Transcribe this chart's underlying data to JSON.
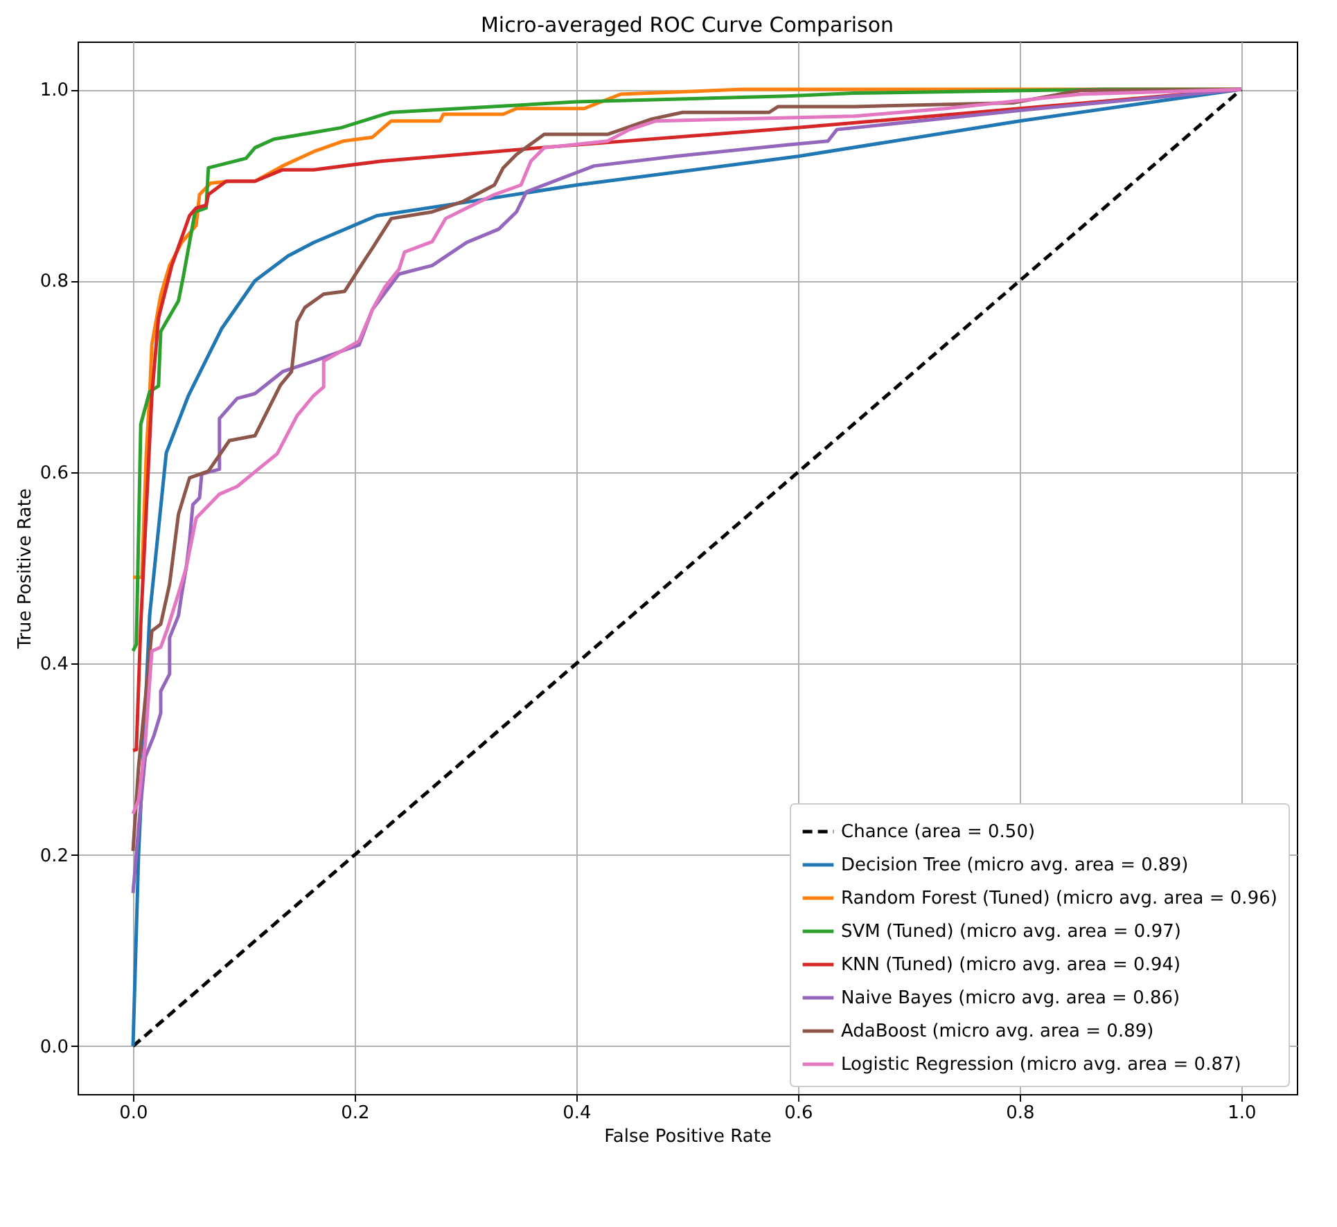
{
  "chart_data": {
    "type": "line",
    "title": "Micro-averaged ROC Curve Comparison",
    "xlabel": "False Positive Rate",
    "ylabel": "True Positive Rate",
    "xlim": [
      -0.05,
      1.05
    ],
    "ylim": [
      -0.05,
      1.05
    ],
    "xticks": [
      {
        "value": 0,
        "label": "0.0"
      },
      {
        "value": 0.2,
        "label": "0.2"
      },
      {
        "value": 0.4,
        "label": "0.4"
      },
      {
        "value": 0.6,
        "label": "0.6"
      },
      {
        "value": 0.8,
        "label": "0.8"
      },
      {
        "value": 1,
        "label": "1.0"
      }
    ],
    "yticks": [
      {
        "value": 0,
        "label": "0.0"
      },
      {
        "value": 0.2,
        "label": "0.2"
      },
      {
        "value": 0.4,
        "label": "0.4"
      },
      {
        "value": 0.6,
        "label": "0.6"
      },
      {
        "value": 0.8,
        "label": "0.8"
      },
      {
        "value": 1,
        "label": "1.0"
      }
    ],
    "grid": true,
    "legend": "bottom right",
    "series": [
      {
        "name": "Chance (area = 0.50)",
        "color": "#000000",
        "line_style": "dashed",
        "x": [
          0,
          1
        ],
        "values": [
          0,
          1
        ]
      },
      {
        "name": "Decision Tree (micro avg. area = 0.89)",
        "color": "#1f77b4",
        "x": [
          0,
          0.005,
          0.015,
          0.03,
          0.05,
          0.08,
          0.11,
          0.14,
          0.163,
          0.22,
          0.3,
          0.4,
          0.6,
          0.8,
          1
        ],
        "values": [
          0,
          0.2,
          0.45,
          0.62,
          0.68,
          0.75,
          0.8,
          0.826,
          0.84,
          0.868,
          0.882,
          0.9,
          0.93,
          0.967,
          1
        ]
      },
      {
        "name": "Random Forest (Tuned) (micro avg. area = 0.96)",
        "color": "#ff7f0e",
        "x": [
          0,
          0.008,
          0.012,
          0.015,
          0.017,
          0.025,
          0.033,
          0.044,
          0.057,
          0.06,
          0.07,
          0.087,
          0.11,
          0.135,
          0.163,
          0.19,
          0.216,
          0.233,
          0.277,
          0.28,
          0.334,
          0.346,
          0.407,
          0.44,
          0.55,
          1
        ],
        "values": [
          0.49,
          0.49,
          0.62,
          0.68,
          0.733,
          0.785,
          0.816,
          0.84,
          0.858,
          0.89,
          0.902,
          0.904,
          0.904,
          0.92,
          0.935,
          0.946,
          0.95,
          0.967,
          0.967,
          0.974,
          0.974,
          0.98,
          0.98,
          0.995,
          1,
          1
        ]
      },
      {
        "name": "SVM (Tuned) (micro avg. area = 0.97)",
        "color": "#2ca02c",
        "x": [
          0,
          0.003,
          0.007,
          0.015,
          0.023,
          0.025,
          0.041,
          0.045,
          0.056,
          0.066,
          0.068,
          0.102,
          0.11,
          0.127,
          0.163,
          0.188,
          0.224,
          0.233,
          0.4,
          0.59,
          0.65,
          0.875,
          1
        ],
        "values": [
          0.413,
          0.42,
          0.65,
          0.684,
          0.69,
          0.747,
          0.779,
          0.802,
          0.872,
          0.876,
          0.918,
          0.928,
          0.939,
          0.948,
          0.955,
          0.96,
          0.973,
          0.976,
          0.987,
          0.993,
          0.996,
          1,
          1
        ]
      },
      {
        "name": "KNN (Tuned) (micro avg. area = 0.94)",
        "color": "#d62728",
        "x": [
          0,
          0.003,
          0.007,
          0.017,
          0.023,
          0.035,
          0.051,
          0.057,
          0.066,
          0.068,
          0.084,
          0.11,
          0.135,
          0.163,
          0.224,
          0.367,
          0.6,
          1
        ],
        "values": [
          0.309,
          0.31,
          0.441,
          0.68,
          0.761,
          0.816,
          0.868,
          0.876,
          0.879,
          0.89,
          0.904,
          0.904,
          0.916,
          0.916,
          0.925,
          0.939,
          0.96,
          1
        ]
      },
      {
        "name": "Naive Bayes (micro avg. area = 0.86)",
        "color": "#9467bd",
        "x": [
          0,
          0.005,
          0.011,
          0.019,
          0.025,
          0.025,
          0.033,
          0.033,
          0.041,
          0.044,
          0.048,
          0.051,
          0.054,
          0.06,
          0.062,
          0.078,
          0.078,
          0.094,
          0.11,
          0.135,
          0.163,
          0.204,
          0.216,
          0.24,
          0.27,
          0.301,
          0.33,
          0.346,
          0.355,
          0.391,
          0.416,
          0.489,
          0.59,
          0.627,
          0.635,
          0.8,
          1
        ],
        "values": [
          0.16,
          0.228,
          0.302,
          0.325,
          0.348,
          0.371,
          0.389,
          0.427,
          0.45,
          0.473,
          0.5,
          0.528,
          0.566,
          0.573,
          0.598,
          0.603,
          0.656,
          0.677,
          0.682,
          0.705,
          0.716,
          0.733,
          0.77,
          0.807,
          0.816,
          0.84,
          0.854,
          0.872,
          0.893,
          0.909,
          0.92,
          0.93,
          0.942,
          0.946,
          0.958,
          0.978,
          1
        ]
      },
      {
        "name": "AdaBoost (micro avg. area = 0.89)",
        "color": "#8c564b",
        "x": [
          0,
          0.005,
          0.013,
          0.017,
          0.025,
          0.033,
          0.041,
          0.051,
          0.068,
          0.087,
          0.11,
          0.133,
          0.143,
          0.148,
          0.155,
          0.172,
          0.191,
          0.208,
          0.216,
          0.233,
          0.27,
          0.298,
          0.326,
          0.334,
          0.346,
          0.371,
          0.428,
          0.468,
          0.496,
          0.574,
          0.582,
          0.651,
          0.794,
          0.855,
          1
        ],
        "values": [
          0.204,
          0.292,
          0.385,
          0.434,
          0.441,
          0.483,
          0.556,
          0.594,
          0.601,
          0.633,
          0.638,
          0.691,
          0.705,
          0.757,
          0.772,
          0.786,
          0.789,
          0.82,
          0.834,
          0.865,
          0.872,
          0.883,
          0.9,
          0.918,
          0.932,
          0.953,
          0.953,
          0.969,
          0.976,
          0.976,
          0.982,
          0.982,
          0.986,
          0.999,
          1
        ]
      },
      {
        "name": "Logistic Regression (micro avg. area = 0.87)",
        "color": "#e377c2",
        "x": [
          0,
          0.005,
          0.011,
          0.017,
          0.025,
          0.031,
          0.041,
          0.048,
          0.057,
          0.078,
          0.094,
          0.115,
          0.13,
          0.148,
          0.163,
          0.172,
          0.172,
          0.204,
          0.216,
          0.227,
          0.24,
          0.245,
          0.27,
          0.282,
          0.301,
          0.326,
          0.35,
          0.359,
          0.371,
          0.428,
          0.448,
          0.472,
          0.651,
          0.733,
          0.855,
          1
        ],
        "values": [
          0.243,
          0.257,
          0.316,
          0.413,
          0.417,
          0.436,
          0.473,
          0.5,
          0.552,
          0.577,
          0.585,
          0.605,
          0.619,
          0.659,
          0.68,
          0.689,
          0.716,
          0.737,
          0.77,
          0.793,
          0.812,
          0.83,
          0.841,
          0.865,
          0.876,
          0.89,
          0.9,
          0.925,
          0.939,
          0.946,
          0.958,
          0.967,
          0.972,
          0.98,
          0.995,
          1
        ]
      }
    ]
  }
}
